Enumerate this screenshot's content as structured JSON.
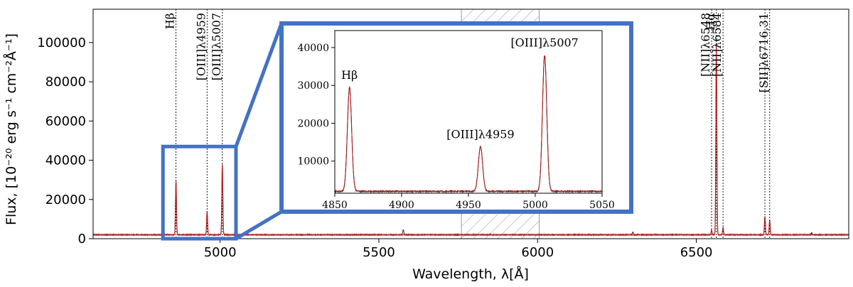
{
  "chart_data": [
    {
      "panel": "main",
      "type": "line",
      "xlabel": "Wavelength, λ[Å]",
      "ylabel": "Flux, [10⁻²⁰ erg s⁻¹ cm⁻²Å⁻¹]",
      "xlim": [
        4600,
        6980
      ],
      "ylim": [
        0,
        117000
      ],
      "xticks": [
        5000,
        5500,
        6000,
        6500
      ],
      "yticks": [
        0,
        20000,
        40000,
        60000,
        80000,
        100000
      ],
      "grid": false,
      "masked_region": [
        5760,
        6005
      ],
      "continuum": 2000,
      "series": [
        {
          "role": "observed spectrum",
          "color": "#000000",
          "peaks": [
            {
              "x": 4861,
              "y": 29500
            },
            {
              "x": 4959,
              "y": 13800
            },
            {
              "x": 5007,
              "y": 38000
            },
            {
              "x": 5577,
              "y": 4500
            },
            {
              "x": 6300,
              "y": 3500
            },
            {
              "x": 6548,
              "y": 4500
            },
            {
              "x": 6563,
              "y": 100000
            },
            {
              "x": 6584,
              "y": 5500
            },
            {
              "x": 6716,
              "y": 11500
            },
            {
              "x": 6731,
              "y": 9500
            },
            {
              "x": 6863,
              "y": 3000
            }
          ]
        },
        {
          "role": "model fit",
          "color": "#cc1f1f",
          "peaks": [
            {
              "x": 4861,
              "y": 29000
            },
            {
              "x": 4959,
              "y": 13500
            },
            {
              "x": 5007,
              "y": 37500
            },
            {
              "x": 6548,
              "y": 4000
            },
            {
              "x": 6563,
              "y": 99000
            },
            {
              "x": 6584,
              "y": 5000
            },
            {
              "x": 6716,
              "y": 11000
            },
            {
              "x": 6731,
              "y": 9000
            }
          ]
        }
      ],
      "lines": [
        {
          "x": 4861,
          "label": "Hβ"
        },
        {
          "x": 4959,
          "label": "[OIII]λ4959"
        },
        {
          "x": 5007,
          "label": "[OIII]λ5007"
        },
        {
          "x": 6548,
          "label": "[NII]λ6548"
        },
        {
          "x": 6563,
          "label": "Hα"
        },
        {
          "x": 6584,
          "label": "[NII]λ6584"
        },
        {
          "x": 6716,
          "label": ""
        },
        {
          "x": 6731,
          "label": "[SII]λ6716,31"
        }
      ],
      "zoom_box": {
        "x": [
          4820,
          5050
        ],
        "y": [
          0,
          47000
        ],
        "color": "#4472c4"
      }
    },
    {
      "panel": "inset",
      "type": "line",
      "xlim": [
        4850,
        5050
      ],
      "ylim": [
        1500,
        44500
      ],
      "xticks": [
        4850,
        4900,
        4950,
        5000,
        5050
      ],
      "yticks": [
        10000,
        20000,
        30000,
        40000
      ],
      "continuum": 2000,
      "peaks": [
        {
          "x": 4861,
          "y": 29500,
          "label": "Hβ"
        },
        {
          "x": 4959,
          "y": 13800,
          "label": "[OIII]λ4959"
        },
        {
          "x": 5007,
          "y": 38000,
          "label": "[OIII]λ5007"
        }
      ],
      "border_color": "#4472c4"
    }
  ]
}
